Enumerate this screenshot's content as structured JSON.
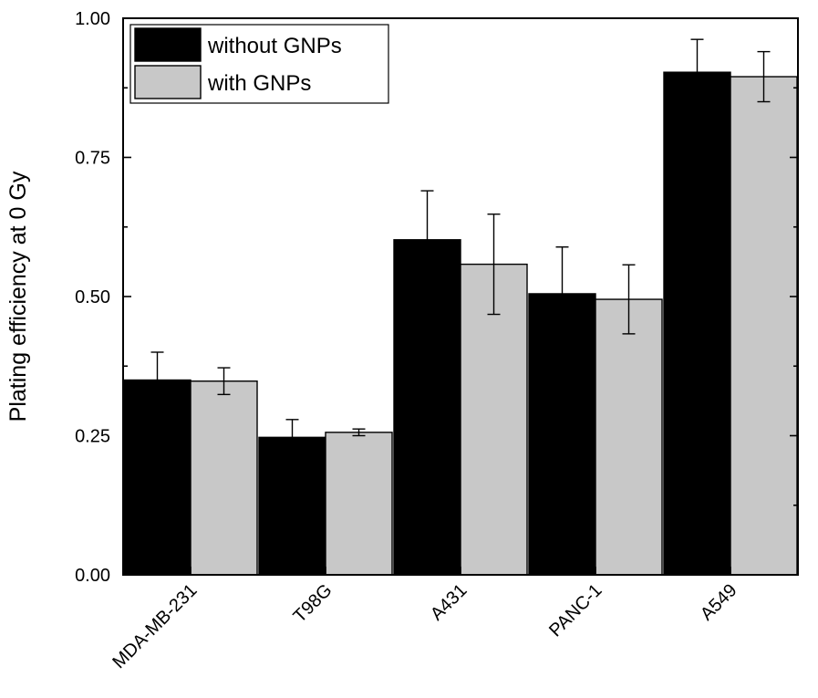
{
  "chart_data": {
    "type": "bar",
    "ylabel": "Plating efficiency at 0 Gy",
    "xlabel": "",
    "ylim": [
      0,
      1.0
    ],
    "yticks": [
      0.0,
      0.25,
      0.5,
      0.75,
      1.0
    ],
    "ytick_labels": [
      "0.00",
      "0.25",
      "0.50",
      "0.75",
      "1.00"
    ],
    "categories": [
      "MDA-MB-231",
      "T98G",
      "A431",
      "PANC-1",
      "A549"
    ],
    "legend_position": "top-left",
    "series": [
      {
        "name": "without GNPs",
        "color": "#000000",
        "values": [
          0.35,
          0.247,
          0.602,
          0.505,
          0.903
        ],
        "errors": [
          0.05,
          0.032,
          0.088,
          0.084,
          0.059
        ]
      },
      {
        "name": "with GNPs",
        "color": "#c8c8c8",
        "values": [
          0.348,
          0.256,
          0.558,
          0.495,
          0.895
        ],
        "errors": [
          0.024,
          0.006,
          0.09,
          0.062,
          0.045
        ]
      }
    ]
  }
}
